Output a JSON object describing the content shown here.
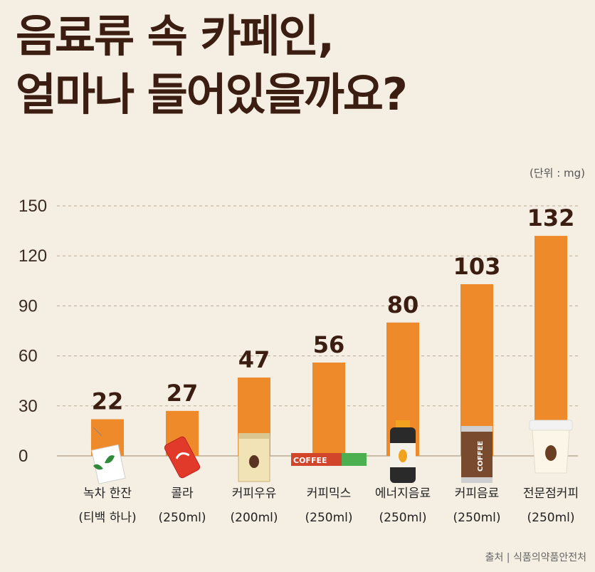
{
  "title_lines": [
    "음료류 속 카페인,",
    "얼마나 들어있을까요?"
  ],
  "unit": "(단위 : mg)",
  "source": "출처 | 식품의약품안전처",
  "colors": {
    "bar": "#ee8a2a",
    "grid": "#b9aa95",
    "text": "#3b1d12",
    "background": "#f5efe3"
  },
  "chart_data": {
    "type": "bar",
    "categories": [
      "녹차 한잔\n(티백 하나)",
      "콜라\n(250ml)",
      "커피우유\n(200ml)",
      "커피믹스\n(250ml)",
      "에너지음료\n(250ml)",
      "커피음료\n(250ml)",
      "전문점커피\n(250ml)"
    ],
    "values": [
      22,
      27,
      47,
      56,
      80,
      103,
      132
    ],
    "data_labels": [
      "22",
      "27",
      "47",
      "56",
      "80",
      "103",
      "132"
    ],
    "yticks": [
      "0",
      "30",
      "60",
      "90",
      "120",
      "150"
    ],
    "ylim": [
      0,
      150
    ],
    "grid": true,
    "icons": [
      "tea-bag-icon",
      "cola-can-icon",
      "coffee-milk-carton-icon",
      "coffee-mix-stick-icon",
      "energy-drink-bottle-icon",
      "coffee-can-icon",
      "coffee-cup-icon"
    ],
    "icon_text": [
      "",
      "",
      "",
      "COFFEE",
      "",
      "COFFEE",
      ""
    ]
  }
}
